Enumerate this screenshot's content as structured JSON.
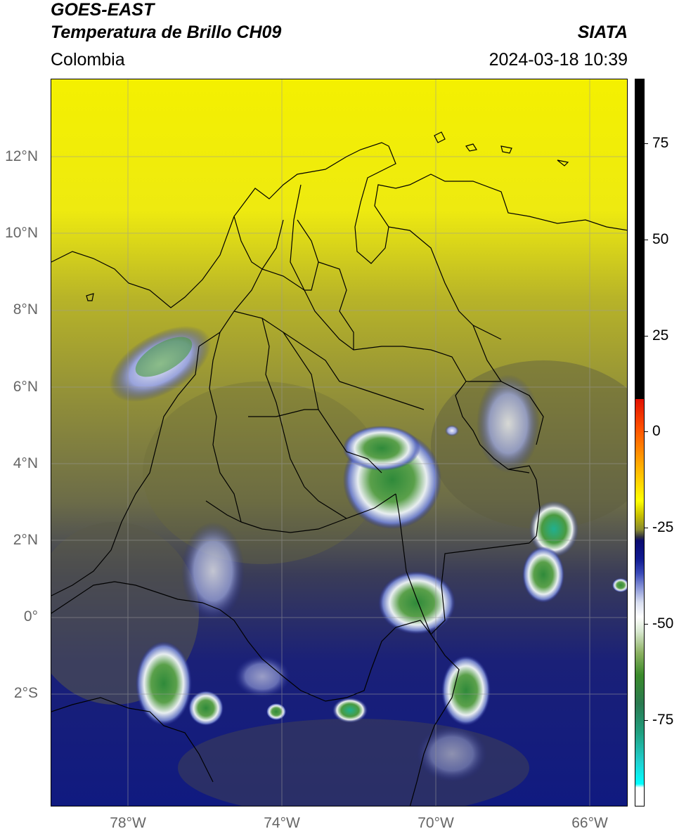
{
  "header": {
    "satellite": "GOES-EAST",
    "product": "Temperatura de Brillo CH09",
    "organization": "SIATA",
    "region": "Colombia",
    "timestamp": "2024-03-18 10:39"
  },
  "map": {
    "lat_labels": [
      "12°N",
      "10°N",
      "8°N",
      "6°N",
      "4°N",
      "2°N",
      "0°",
      "2°S"
    ],
    "lon_labels": [
      "78°W",
      "74°W",
      "70°W",
      "66°W"
    ],
    "lat_range": [
      -5,
      14
    ],
    "lon_range": [
      -80,
      -65
    ]
  },
  "colorbar": {
    "ticks": [
      "75",
      "50",
      "25",
      "0",
      "-25",
      "-50",
      "-75"
    ],
    "range": [
      -95,
      90
    ],
    "colors": {
      "hot": "#000000",
      "warm": "#ffff00",
      "mid": "#0a0a70",
      "cold": "#2a8a30",
      "coldest": "#00ffff"
    }
  }
}
